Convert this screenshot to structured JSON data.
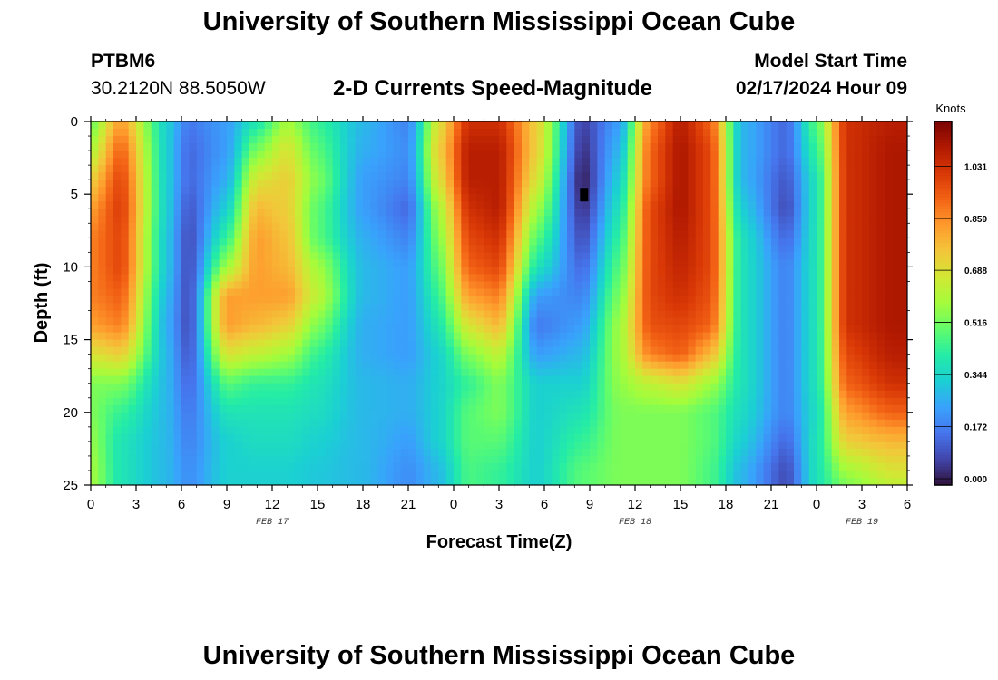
{
  "page": {
    "title_top": "University of Southern Mississippi Ocean Cube",
    "title_bottom": "University of Southern Mississippi Ocean Cube",
    "station_id": "PTBM6",
    "station_coords": "30.2120N  88.5050W",
    "plot_title": "2-D Currents Speed-Magnitude",
    "model_start_label": "Model Start Time",
    "model_start_value": "02/17/2024 Hour 09"
  },
  "chart_data": {
    "type": "heatmap",
    "title": "2-D Currents Speed-Magnitude",
    "xlabel": "Forecast Time(Z)",
    "ylabel": "Depth (ft)",
    "x_unit": "hours since 02/17/2024 00Z",
    "xlim": [
      0,
      54
    ],
    "x_ticks": [
      0,
      3,
      6,
      9,
      12,
      15,
      18,
      21,
      24,
      27,
      30,
      33,
      36,
      39,
      42,
      45,
      48,
      51,
      54
    ],
    "x_tick_labels": [
      "0",
      "3",
      "6",
      "9",
      "12",
      "15",
      "18",
      "21",
      "0",
      "3",
      "6",
      "9",
      "12",
      "15",
      "18",
      "21",
      "0",
      "3",
      "6"
    ],
    "date_labels": [
      {
        "text": "FEB 17",
        "x": 12
      },
      {
        "text": "FEB 18",
        "x": 36
      },
      {
        "text": "FEB 19",
        "x": 51
      }
    ],
    "ylim": [
      0,
      25
    ],
    "y_ticks": [
      0,
      5,
      10,
      15,
      20,
      25
    ],
    "y_tick_labels": [
      "0",
      "5",
      "10",
      "15",
      "20",
      "25"
    ],
    "colorbar": {
      "label": "Knots",
      "range": [
        0,
        1.2
      ],
      "ticks": [
        0.0,
        0.172,
        0.344,
        0.516,
        0.688,
        0.859,
        1.031
      ],
      "tick_labels": [
        "0.000",
        "0.172",
        "0.344",
        "0.516",
        "0.688",
        "0.859",
        "1.031"
      ],
      "colormap": [
        "#30123b",
        "#4145ab",
        "#4675ed",
        "#39a2fc",
        "#1bcfd4",
        "#24eca6",
        "#61fc6c",
        "#a4fc3b",
        "#d1e834",
        "#f3c63a",
        "#fe9b2d",
        "#f36315",
        "#d93806",
        "#b11901",
        "#7a0403"
      ]
    },
    "series": [
      {
        "depth": 0,
        "values": [
          0.52,
          0.85,
          0.35,
          0.18,
          0.25,
          0.4,
          0.6,
          0.45,
          0.3,
          0.2,
          0.7,
          1.05,
          1.05,
          0.75,
          0.08,
          0.25,
          0.9,
          1.1,
          0.95,
          0.3,
          0.15,
          0.5,
          1.05,
          1.1
        ]
      },
      {
        "depth": 2,
        "values": [
          0.62,
          0.95,
          0.35,
          0.15,
          0.25,
          0.55,
          0.7,
          0.5,
          0.28,
          0.22,
          0.75,
          1.1,
          1.1,
          0.75,
          0.05,
          0.3,
          0.95,
          1.12,
          1.0,
          0.3,
          0.15,
          0.45,
          1.05,
          1.12
        ]
      },
      {
        "depth": 4,
        "values": [
          0.75,
          1.0,
          0.35,
          0.15,
          0.28,
          0.7,
          0.75,
          0.55,
          0.25,
          0.2,
          0.7,
          1.1,
          1.1,
          0.7,
          0.02,
          0.35,
          0.95,
          1.12,
          1.0,
          0.3,
          0.12,
          0.4,
          1.05,
          1.12
        ]
      },
      {
        "depth": 6,
        "values": [
          0.85,
          1.02,
          0.35,
          0.12,
          0.35,
          0.8,
          0.75,
          0.5,
          0.25,
          0.15,
          0.6,
          1.05,
          1.1,
          0.6,
          0.05,
          0.4,
          1.0,
          1.12,
          1.0,
          0.35,
          0.1,
          0.4,
          1.05,
          1.12
        ]
      },
      {
        "depth": 8,
        "values": [
          0.9,
          1.0,
          0.33,
          0.1,
          0.45,
          0.85,
          0.78,
          0.5,
          0.28,
          0.2,
          0.55,
          1.0,
          1.05,
          0.5,
          0.1,
          0.45,
          1.0,
          1.1,
          1.0,
          0.4,
          0.15,
          0.4,
          1.05,
          1.12
        ]
      },
      {
        "depth": 10,
        "values": [
          0.9,
          1.0,
          0.33,
          0.1,
          0.6,
          0.85,
          0.8,
          0.6,
          0.3,
          0.25,
          0.5,
          0.95,
          1.0,
          0.4,
          0.15,
          0.5,
          1.0,
          1.08,
          1.0,
          0.4,
          0.2,
          0.4,
          1.05,
          1.12
        ]
      },
      {
        "depth": 12,
        "values": [
          0.9,
          0.95,
          0.3,
          0.1,
          0.85,
          0.85,
          0.85,
          0.65,
          0.3,
          0.25,
          0.45,
          0.85,
          0.9,
          0.25,
          0.2,
          0.55,
          1.0,
          1.05,
          0.98,
          0.4,
          0.2,
          0.4,
          1.05,
          1.12
        ]
      },
      {
        "depth": 14,
        "values": [
          0.85,
          0.9,
          0.28,
          0.1,
          0.85,
          0.8,
          0.75,
          0.55,
          0.28,
          0.25,
          0.4,
          0.7,
          0.8,
          0.18,
          0.25,
          0.6,
          0.98,
          1.0,
          0.95,
          0.4,
          0.2,
          0.4,
          1.05,
          1.12
        ]
      },
      {
        "depth": 16,
        "values": [
          0.7,
          0.75,
          0.3,
          0.12,
          0.7,
          0.65,
          0.6,
          0.45,
          0.28,
          0.25,
          0.35,
          0.55,
          0.65,
          0.25,
          0.3,
          0.6,
          0.9,
          0.95,
          0.8,
          0.4,
          0.2,
          0.4,
          1.0,
          1.1
        ]
      },
      {
        "depth": 18,
        "values": [
          0.55,
          0.55,
          0.3,
          0.15,
          0.5,
          0.45,
          0.45,
          0.4,
          0.3,
          0.28,
          0.35,
          0.45,
          0.55,
          0.35,
          0.35,
          0.58,
          0.65,
          0.7,
          0.6,
          0.4,
          0.2,
          0.4,
          0.95,
          1.05
        ]
      },
      {
        "depth": 20,
        "values": [
          0.55,
          0.45,
          0.3,
          0.18,
          0.4,
          0.4,
          0.4,
          0.38,
          0.3,
          0.28,
          0.35,
          0.5,
          0.55,
          0.35,
          0.4,
          0.55,
          0.55,
          0.55,
          0.5,
          0.38,
          0.2,
          0.38,
          0.85,
          0.95
        ]
      },
      {
        "depth": 22,
        "values": [
          0.58,
          0.4,
          0.3,
          0.2,
          0.35,
          0.38,
          0.38,
          0.35,
          0.3,
          0.25,
          0.35,
          0.5,
          0.5,
          0.35,
          0.45,
          0.55,
          0.55,
          0.55,
          0.5,
          0.35,
          0.15,
          0.4,
          0.75,
          0.8
        ]
      },
      {
        "depth": 24,
        "values": [
          0.6,
          0.4,
          0.3,
          0.22,
          0.35,
          0.35,
          0.35,
          0.33,
          0.3,
          0.22,
          0.3,
          0.48,
          0.45,
          0.35,
          0.5,
          0.55,
          0.55,
          0.55,
          0.48,
          0.3,
          0.1,
          0.4,
          0.6,
          0.7
        ]
      },
      {
        "depth": 25,
        "values": [
          0.6,
          0.4,
          0.3,
          0.22,
          0.35,
          0.35,
          0.35,
          0.33,
          0.3,
          0.22,
          0.3,
          0.48,
          0.45,
          0.35,
          0.5,
          0.55,
          0.55,
          0.55,
          0.48,
          0.3,
          0.1,
          0.4,
          0.55,
          0.65
        ]
      }
    ],
    "series_x_hours": [
      0,
      2,
      5,
      6.5,
      9,
      11,
      13,
      15,
      18,
      21,
      23,
      25,
      27,
      29.5,
      32.5,
      35,
      37,
      39,
      41,
      43,
      46,
      48,
      50,
      53
    ],
    "missing_cell": {
      "x_hours": 32.6,
      "depth": 5
    }
  }
}
